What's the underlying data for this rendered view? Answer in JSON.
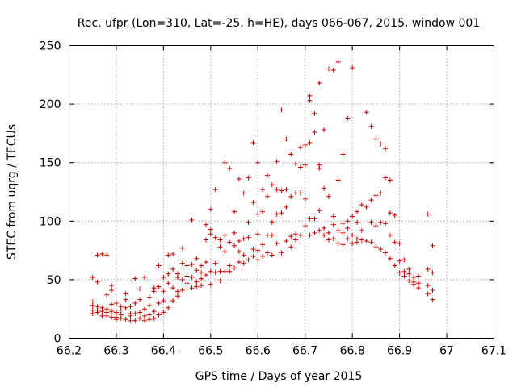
{
  "chart_data": {
    "type": "scatter",
    "title": "Rec. ufpr (Lon=310, Lat=-25, h=HE), days 066-067, 2015, window 001",
    "xlabel": "GPS time / Days of year 2015",
    "ylabel": "STEC from uqrg / TECUs",
    "xlim": [
      66.2,
      67.1
    ],
    "ylim": [
      0,
      250
    ],
    "xticks": [
      "66.2",
      "66.3",
      "66.4",
      "66.5",
      "66.6",
      "66.7",
      "66.8",
      "66.9",
      "67",
      "67.1"
    ],
    "yticks": [
      "0",
      "50",
      "100",
      "150",
      "200",
      "250"
    ],
    "grid": true,
    "marker": "plus",
    "color": "#cc0000",
    "points": [
      [
        66.25,
        52
      ],
      [
        66.25,
        31
      ],
      [
        66.25,
        28
      ],
      [
        66.25,
        24
      ],
      [
        66.25,
        21
      ],
      [
        66.26,
        48
      ],
      [
        66.26,
        71
      ],
      [
        66.26,
        27
      ],
      [
        66.26,
        22
      ],
      [
        66.26,
        24
      ],
      [
        66.27,
        72
      ],
      [
        66.27,
        23
      ],
      [
        66.27,
        19
      ],
      [
        66.27,
        26
      ],
      [
        66.28,
        71
      ],
      [
        66.28,
        37
      ],
      [
        66.28,
        22
      ],
      [
        66.28,
        19
      ],
      [
        66.28,
        25
      ],
      [
        66.29,
        45
      ],
      [
        66.29,
        41
      ],
      [
        66.29,
        29
      ],
      [
        66.29,
        18
      ],
      [
        66.29,
        23
      ],
      [
        66.3,
        30
      ],
      [
        66.3,
        22
      ],
      [
        66.3,
        18
      ],
      [
        66.3,
        16
      ],
      [
        66.31,
        27
      ],
      [
        66.31,
        24
      ],
      [
        66.31,
        20
      ],
      [
        66.31,
        17
      ],
      [
        66.32,
        38
      ],
      [
        66.32,
        33
      ],
      [
        66.32,
        26
      ],
      [
        66.32,
        16
      ],
      [
        66.33,
        27
      ],
      [
        66.33,
        21
      ],
      [
        66.33,
        19
      ],
      [
        66.33,
        15
      ],
      [
        66.34,
        51
      ],
      [
        66.34,
        30
      ],
      [
        66.34,
        21
      ],
      [
        66.34,
        15
      ],
      [
        66.35,
        42
      ],
      [
        66.35,
        33
      ],
      [
        66.35,
        22
      ],
      [
        66.35,
        17
      ],
      [
        66.36,
        52
      ],
      [
        66.36,
        25
      ],
      [
        66.36,
        19
      ],
      [
        66.36,
        15
      ],
      [
        66.37,
        35
      ],
      [
        66.37,
        28
      ],
      [
        66.37,
        20
      ],
      [
        66.37,
        16
      ],
      [
        66.38,
        43
      ],
      [
        66.38,
        40
      ],
      [
        66.38,
        23
      ],
      [
        66.38,
        17
      ],
      [
        66.39,
        62
      ],
      [
        66.39,
        44
      ],
      [
        66.39,
        30
      ],
      [
        66.39,
        20
      ],
      [
        66.4,
        52
      ],
      [
        66.4,
        40
      ],
      [
        66.4,
        32
      ],
      [
        66.4,
        22
      ],
      [
        66.41,
        71
      ],
      [
        66.41,
        55
      ],
      [
        66.41,
        47
      ],
      [
        66.41,
        26
      ],
      [
        66.42,
        72
      ],
      [
        66.42,
        59
      ],
      [
        66.42,
        43
      ],
      [
        66.42,
        32
      ],
      [
        66.43,
        55
      ],
      [
        66.43,
        52
      ],
      [
        66.43,
        40
      ],
      [
        66.43,
        36
      ],
      [
        66.44,
        77
      ],
      [
        66.44,
        64
      ],
      [
        66.44,
        50
      ],
      [
        66.44,
        41
      ],
      [
        66.45,
        62
      ],
      [
        66.45,
        53
      ],
      [
        66.45,
        47
      ],
      [
        66.45,
        42
      ],
      [
        66.46,
        101
      ],
      [
        66.46,
        63
      ],
      [
        66.46,
        52
      ],
      [
        66.46,
        43
      ],
      [
        66.47,
        68
      ],
      [
        66.47,
        58
      ],
      [
        66.47,
        48
      ],
      [
        66.47,
        44
      ],
      [
        66.48,
        62
      ],
      [
        66.48,
        56
      ],
      [
        66.48,
        51
      ],
      [
        66.48,
        45
      ],
      [
        66.49,
        97
      ],
      [
        66.49,
        84
      ],
      [
        66.49,
        65
      ],
      [
        66.49,
        54
      ],
      [
        66.5,
        110
      ],
      [
        66.5,
        93
      ],
      [
        66.5,
        89
      ],
      [
        66.5,
        57
      ],
      [
        66.5,
        46
      ],
      [
        66.51,
        127
      ],
      [
        66.51,
        86
      ],
      [
        66.51,
        64
      ],
      [
        66.51,
        56
      ],
      [
        66.52,
        84
      ],
      [
        66.52,
        78
      ],
      [
        66.52,
        57
      ],
      [
        66.52,
        49
      ],
      [
        66.53,
        150
      ],
      [
        66.53,
        88
      ],
      [
        66.53,
        74
      ],
      [
        66.53,
        57
      ],
      [
        66.54,
        145
      ],
      [
        66.54,
        82
      ],
      [
        66.54,
        62
      ],
      [
        66.54,
        57
      ],
      [
        66.55,
        108
      ],
      [
        66.55,
        90
      ],
      [
        66.55,
        79
      ],
      [
        66.55,
        60
      ],
      [
        66.56,
        136
      ],
      [
        66.56,
        83
      ],
      [
        66.56,
        74
      ],
      [
        66.56,
        65
      ],
      [
        66.57,
        124
      ],
      [
        66.57,
        85
      ],
      [
        66.57,
        71
      ],
      [
        66.57,
        64
      ],
      [
        66.58,
        137
      ],
      [
        66.58,
        99
      ],
      [
        66.58,
        86
      ],
      [
        66.58,
        67
      ],
      [
        66.59,
        167
      ],
      [
        66.59,
        116
      ],
      [
        66.59,
        76
      ],
      [
        66.59,
        70
      ],
      [
        66.6,
        150
      ],
      [
        66.6,
        106
      ],
      [
        66.6,
        89
      ],
      [
        66.6,
        75
      ],
      [
        66.6,
        67
      ],
      [
        66.61,
        127
      ],
      [
        66.61,
        108
      ],
      [
        66.61,
        80
      ],
      [
        66.61,
        70
      ],
      [
        66.62,
        139
      ],
      [
        66.62,
        121
      ],
      [
        66.62,
        88
      ],
      [
        66.62,
        73
      ],
      [
        66.63,
        131
      ],
      [
        66.63,
        99
      ],
      [
        66.63,
        88
      ],
      [
        66.63,
        71
      ],
      [
        66.64,
        151
      ],
      [
        66.64,
        127
      ],
      [
        66.64,
        106
      ],
      [
        66.64,
        81
      ],
      [
        66.65,
        195
      ],
      [
        66.65,
        126
      ],
      [
        66.65,
        107
      ],
      [
        66.65,
        73
      ],
      [
        66.66,
        170
      ],
      [
        66.66,
        127
      ],
      [
        66.66,
        112
      ],
      [
        66.66,
        83
      ],
      [
        66.67,
        157
      ],
      [
        66.67,
        121
      ],
      [
        66.67,
        87
      ],
      [
        66.67,
        78
      ],
      [
        66.68,
        149
      ],
      [
        66.68,
        124
      ],
      [
        66.68,
        89
      ],
      [
        66.68,
        84
      ],
      [
        66.69,
        163
      ],
      [
        66.69,
        146
      ],
      [
        66.69,
        124
      ],
      [
        66.69,
        88
      ],
      [
        66.7,
        165
      ],
      [
        66.7,
        148
      ],
      [
        66.7,
        119
      ],
      [
        66.7,
        96
      ],
      [
        66.71,
        207
      ],
      [
        66.71,
        203
      ],
      [
        66.71,
        167
      ],
      [
        66.71,
        102
      ],
      [
        66.71,
        88
      ],
      [
        66.72,
        192
      ],
      [
        66.72,
        176
      ],
      [
        66.72,
        102
      ],
      [
        66.72,
        90
      ],
      [
        66.73,
        218
      ],
      [
        66.73,
        148
      ],
      [
        66.73,
        145
      ],
      [
        66.73,
        109
      ],
      [
        66.73,
        92
      ],
      [
        66.74,
        178
      ],
      [
        66.74,
        128
      ],
      [
        66.74,
        94
      ],
      [
        66.74,
        88
      ],
      [
        66.75,
        230
      ],
      [
        66.75,
        121
      ],
      [
        66.75,
        90
      ],
      [
        66.75,
        84
      ],
      [
        66.76,
        229
      ],
      [
        66.76,
        104
      ],
      [
        66.76,
        97
      ],
      [
        66.76,
        85
      ],
      [
        66.77,
        236
      ],
      [
        66.77,
        135
      ],
      [
        66.77,
        92
      ],
      [
        66.77,
        81
      ],
      [
        66.78,
        157
      ],
      [
        66.78,
        98
      ],
      [
        66.78,
        90
      ],
      [
        66.78,
        80
      ],
      [
        66.79,
        188
      ],
      [
        66.79,
        100
      ],
      [
        66.79,
        94
      ],
      [
        66.79,
        85
      ],
      [
        66.8,
        231
      ],
      [
        66.8,
        104
      ],
      [
        66.8,
        88
      ],
      [
        66.8,
        81
      ],
      [
        66.81,
        108
      ],
      [
        66.81,
        99
      ],
      [
        66.81,
        85
      ],
      [
        66.81,
        82
      ],
      [
        66.82,
        114
      ],
      [
        66.82,
        92
      ],
      [
        66.82,
        84
      ],
      [
        66.83,
        193
      ],
      [
        66.83,
        112
      ],
      [
        66.83,
        83
      ],
      [
        66.84,
        181
      ],
      [
        66.84,
        118
      ],
      [
        66.84,
        99
      ],
      [
        66.84,
        82
      ],
      [
        66.85,
        170
      ],
      [
        66.85,
        122
      ],
      [
        66.85,
        96
      ],
      [
        66.85,
        78
      ],
      [
        66.86,
        166
      ],
      [
        66.86,
        124
      ],
      [
        66.86,
        99
      ],
      [
        66.86,
        76
      ],
      [
        66.87,
        162
      ],
      [
        66.87,
        137
      ],
      [
        66.87,
        98
      ],
      [
        66.87,
        73
      ],
      [
        66.88,
        135
      ],
      [
        66.88,
        107
      ],
      [
        66.88,
        88
      ],
      [
        66.88,
        68
      ],
      [
        66.89,
        105
      ],
      [
        66.89,
        82
      ],
      [
        66.89,
        62
      ],
      [
        66.9,
        81
      ],
      [
        66.9,
        66
      ],
      [
        66.9,
        56
      ],
      [
        66.91,
        67
      ],
      [
        66.91,
        57
      ],
      [
        66.91,
        53
      ],
      [
        66.92,
        59
      ],
      [
        66.92,
        55
      ],
      [
        66.92,
        49
      ],
      [
        66.93,
        52
      ],
      [
        66.93,
        48
      ],
      [
        66.93,
        46
      ],
      [
        66.94,
        53
      ],
      [
        66.94,
        47
      ],
      [
        66.94,
        43
      ],
      [
        66.96,
        106
      ],
      [
        66.96,
        59
      ],
      [
        66.96,
        45
      ],
      [
        66.96,
        38
      ],
      [
        66.97,
        79
      ],
      [
        66.97,
        56
      ],
      [
        66.97,
        41
      ],
      [
        66.97,
        33
      ]
    ]
  }
}
